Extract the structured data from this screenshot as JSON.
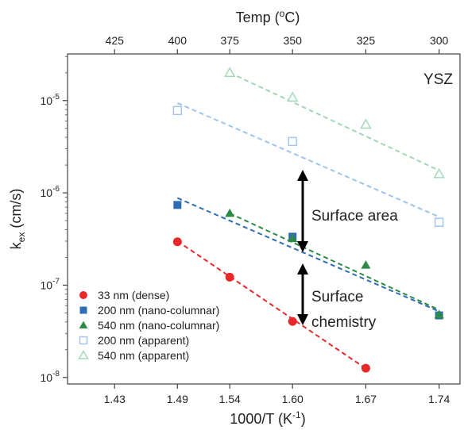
{
  "chart_data": {
    "type": "scatter",
    "x_axis": {
      "label_main": "1000/T (K",
      "label_sup": "-1",
      "label_end": ")",
      "range": [
        1.385,
        1.76
      ],
      "ticks": [
        1.43,
        1.49,
        1.54,
        1.6,
        1.67,
        1.74
      ],
      "tick_labels": [
        "1.43",
        "1.49",
        "1.54",
        "1.60",
        "1.67",
        "1.74"
      ]
    },
    "top_axis": {
      "label_main": "Temp (",
      "label_sup": "o",
      "label_end": "C)",
      "ticks": [
        425,
        400,
        375,
        350,
        325,
        300
      ],
      "tick_labels": [
        "425",
        "400",
        "375",
        "350",
        "325",
        "300"
      ]
    },
    "y_axis": {
      "label_main": "k",
      "label_sub": "ex",
      "label_end": " (cm/s)",
      "scale": "log",
      "range": [
        8.5e-09,
        3.2e-05
      ],
      "decades": [
        {
          "value": 1e-08,
          "base": "10",
          "exp": "-8"
        },
        {
          "value": 1e-07,
          "base": "10",
          "exp": "-7"
        },
        {
          "value": 1e-06,
          "base": "10",
          "exp": "-6"
        },
        {
          "value": 1e-05,
          "base": "10",
          "exp": "-5"
        }
      ]
    },
    "annotations": {
      "material": "YSZ",
      "surface_area": "Surface area",
      "surface_chemistry_1": "Surface",
      "surface_chemistry_2": "chemistry"
    },
    "series": [
      {
        "name": "33 nm (dense)",
        "marker": "circle",
        "filled": true,
        "color": "#e8282b",
        "x": [
          1.49,
          1.54,
          1.6,
          1.67
        ],
        "y": [
          2.95e-07,
          1.22e-07,
          4.05e-08,
          1.26e-08
        ],
        "fit_x": [
          1.49,
          1.67
        ],
        "fit_y": [
          3e-07,
          1.25e-08
        ]
      },
      {
        "name": "200 nm (nano-columnar)",
        "marker": "square",
        "filled": true,
        "color": "#2e6db4",
        "x": [
          1.49,
          1.6,
          1.74
        ],
        "y": [
          7.4e-07,
          3.35e-07,
          4.7e-08
        ],
        "fit_x": [
          1.49,
          1.74
        ],
        "fit_y": [
          8.8e-07,
          5.2e-08
        ]
      },
      {
        "name": "540 nm (nano-columnar)",
        "marker": "triangle",
        "filled": true,
        "color": "#2d8a45",
        "x": [
          1.54,
          1.6,
          1.67,
          1.74
        ],
        "y": [
          6e-07,
          3.2e-07,
          1.65e-07,
          4.8e-08
        ],
        "fit_x": [
          1.54,
          1.74
        ],
        "fit_y": [
          6e-07,
          5.4e-08
        ]
      },
      {
        "name": "200 nm (apparent)",
        "marker": "square",
        "filled": false,
        "color": "#9ec3ec",
        "x": [
          1.49,
          1.6,
          1.74
        ],
        "y": [
          7.8e-06,
          3.6e-06,
          4.8e-07
        ],
        "fit_x": [
          1.49,
          1.74
        ],
        "fit_y": [
          9.4e-06,
          5.5e-07
        ]
      },
      {
        "name": "540 nm (apparent)",
        "marker": "triangle",
        "filled": false,
        "color": "#9fd8b6",
        "x": [
          1.54,
          1.6,
          1.67,
          1.74
        ],
        "y": [
          2e-05,
          1.08e-05,
          5.5e-06,
          1.6e-06
        ],
        "fit_x": [
          1.54,
          1.74
        ],
        "fit_y": [
          2e-05,
          1.75e-06
        ]
      }
    ]
  }
}
